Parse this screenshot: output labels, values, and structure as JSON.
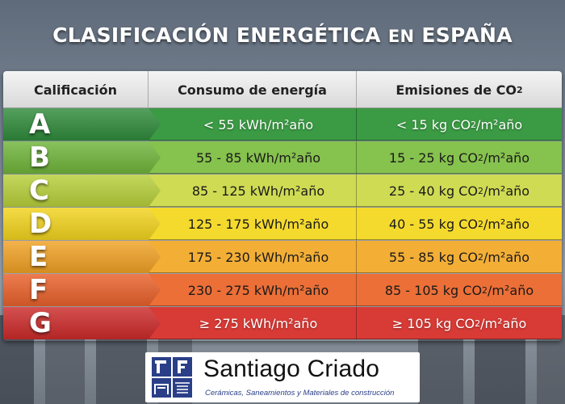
{
  "title": {
    "main": "CLASIFICACIÓN ENERGÉTICA ",
    "connector": "EN",
    "country": " ESPAÑA"
  },
  "table": {
    "headers": {
      "rating": "Calificación",
      "consumption": "Consumo de energía",
      "emissions_prefix": "Emisiones de CO",
      "emissions_sub": "2"
    },
    "rows": [
      {
        "letter": "A",
        "consumption": "< 55 kWh/m²año",
        "emis_pre": "< 15 kg CO",
        "emis_sub": "2",
        "emis_post": "/m²año",
        "arrow_color": "#2f8a3a",
        "row_color": "#3b9a44"
      },
      {
        "letter": "B",
        "consumption": "55 - 85 kWh/m²año",
        "emis_pre": "15 - 25 kg CO",
        "emis_sub": "2",
        "emis_post": "/m²año",
        "arrow_color": "#6fb43a",
        "row_color": "#86c24e"
      },
      {
        "letter": "C",
        "consumption": "85 - 125 kWh/m²año",
        "emis_pre": "25 - 40 kg CO",
        "emis_sub": "2",
        "emis_post": "/m²año",
        "arrow_color": "#b7cf3a",
        "row_color": "#cfdb53"
      },
      {
        "letter": "D",
        "consumption": "125 - 175 kWh/m²año",
        "emis_pre": "40 - 55 kg CO",
        "emis_sub": "2",
        "emis_post": "/m²año",
        "arrow_color": "#f2d31e",
        "row_color": "#f5da2e"
      },
      {
        "letter": "E",
        "consumption": "175 - 230 kWh/m²año",
        "emis_pre": "55 - 85 kg CO",
        "emis_sub": "2",
        "emis_post": "/m²año",
        "arrow_color": "#f0a124",
        "row_color": "#f3ae36"
      },
      {
        "letter": "F",
        "consumption": "230 - 275 kWh/m²año",
        "emis_pre": "85 - 105 kg CO",
        "emis_sub": "2",
        "emis_post": "/m²año",
        "arrow_color": "#e8602a",
        "row_color": "#ec6f37"
      },
      {
        "letter": "G",
        "consumption": "≥ 275 kWh/m²año",
        "emis_pre": "≥ 105 kg CO",
        "emis_sub": "2",
        "emis_post": "/m²año",
        "arrow_color": "#cc2a2a",
        "row_color": "#d83a35"
      }
    ]
  },
  "logo": {
    "brand": "Santiago Criado",
    "tagline": "Cerámicas, Saneamientos y Materiales de construcción",
    "icon": "tile-faucet-logo-icon",
    "brand_color": "#2a3f88"
  }
}
